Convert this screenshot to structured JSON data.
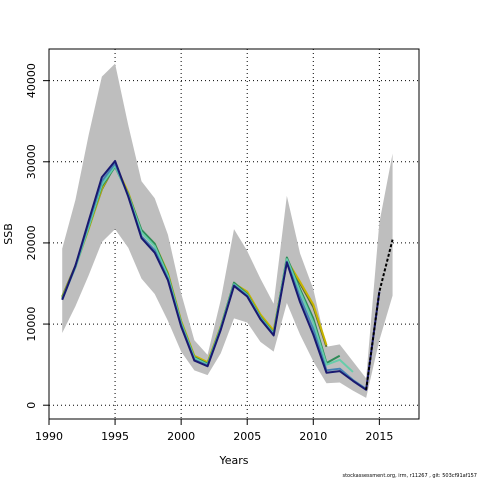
{
  "chart_data": {
    "type": "line",
    "xlabel": "Years",
    "ylabel": "SSB",
    "xlim": [
      1990,
      2018
    ],
    "ylim": [
      -1700,
      43900
    ],
    "x_ticks": [
      1990,
      1995,
      2000,
      2005,
      2010,
      2015
    ],
    "y_ticks": [
      0,
      10000,
      20000,
      30000,
      40000
    ],
    "grid": true,
    "confidence_band": {
      "color": "#bebebe",
      "x": [
        1991,
        1992,
        1993,
        1994,
        1995,
        1996,
        1997,
        1998,
        1999,
        2000,
        2001,
        2002,
        2003,
        2004,
        2005,
        2006,
        2007,
        2008,
        2009,
        2010,
        2011,
        2012,
        2013,
        2014,
        2015,
        2016
      ],
      "upper": [
        19300,
        25300,
        33300,
        40500,
        42100,
        34500,
        27600,
        25500,
        21000,
        13800,
        8000,
        6200,
        13000,
        21700,
        19000,
        15600,
        12500,
        25800,
        18700,
        14300,
        7200,
        7500,
        5400,
        3300,
        22500,
        31000
      ],
      "lower": [
        8900,
        12200,
        16000,
        20100,
        21700,
        19400,
        15600,
        13700,
        10400,
        6600,
        4300,
        3700,
        6400,
        10700,
        10200,
        7800,
        6600,
        12600,
        8700,
        5400,
        2700,
        2800,
        1800,
        900,
        8000,
        13500
      ]
    },
    "series": [
      {
        "color": "#556b2f",
        "x": [
          1991,
          1992,
          1993,
          1994,
          1995,
          1996,
          1997,
          1998,
          1999,
          2000,
          2001,
          2002,
          2003,
          2004,
          2005,
          2006,
          2007,
          2008,
          2009,
          2010,
          2011
        ],
        "values": [
          13400,
          17200,
          21800,
          26600,
          29600,
          26100,
          21400,
          19800,
          16200,
          10300,
          6000,
          5200,
          9600,
          14900,
          13900,
          11100,
          9100,
          17800,
          15000,
          12100,
          7200
        ]
      },
      {
        "color": "#c8b400",
        "x": [
          1991,
          1992,
          1993,
          1994,
          1995,
          1996,
          1997,
          1998,
          1999,
          2000,
          2001,
          2002,
          2003,
          2004,
          2005,
          2006,
          2007,
          2008,
          2009,
          2010,
          2011
        ],
        "values": [
          13300,
          17100,
          21700,
          26700,
          29700,
          26200,
          21500,
          19900,
          16300,
          10400,
          6100,
          5300,
          9700,
          15000,
          14000,
          11200,
          9200,
          17900,
          15200,
          12400,
          7400
        ]
      },
      {
        "color": "#2e8b57",
        "x": [
          1991,
          1992,
          1993,
          1994,
          1995,
          1996,
          1997,
          1998,
          1999,
          2000,
          2001,
          2002,
          2003,
          2004,
          2005,
          2006,
          2007,
          2008,
          2009,
          2010,
          2011,
          2012
        ],
        "values": [
          13200,
          17000,
          21900,
          27000,
          29400,
          26000,
          21600,
          19900,
          16100,
          10200,
          5900,
          5100,
          9600,
          15100,
          13700,
          10900,
          8900,
          18200,
          14300,
          10700,
          5200,
          6100
        ]
      },
      {
        "color": "#66cdaa",
        "x": [
          1991,
          1992,
          1993,
          1994,
          1995,
          1996,
          1997,
          1998,
          1999,
          2000,
          2001,
          2002,
          2003,
          2004,
          2005,
          2006,
          2007,
          2008,
          2009,
          2010,
          2011,
          2012,
          2013
        ],
        "values": [
          13100,
          17000,
          22000,
          27200,
          29500,
          25900,
          21300,
          19600,
          15900,
          10100,
          5800,
          5000,
          9500,
          14900,
          13600,
          10800,
          8800,
          18000,
          14000,
          10200,
          5000,
          5600,
          4100
        ]
      },
      {
        "color": "#4682b4",
        "x": [
          1991,
          1992,
          1993,
          1994,
          1995,
          1996,
          1997,
          1998,
          1999,
          2000,
          2001,
          2002,
          2003,
          2004,
          2005,
          2006,
          2007,
          2008,
          2009,
          2010,
          2011,
          2012,
          2013,
          2014
        ],
        "values": [
          13000,
          17100,
          22400,
          27600,
          29800,
          25800,
          20800,
          19100,
          15600,
          9900,
          5600,
          4900,
          9400,
          14800,
          13500,
          10700,
          8700,
          17700,
          13300,
          9400,
          4300,
          4500,
          3100,
          2000
        ]
      },
      {
        "color": "#191970",
        "x": [
          1991,
          1992,
          1993,
          1994,
          1995,
          1996,
          1997,
          1998,
          1999,
          2000,
          2001,
          2002,
          2003,
          2004,
          2005,
          2006,
          2007,
          2008,
          2009,
          2010,
          2011,
          2012,
          2013,
          2014,
          2015
        ],
        "values": [
          13000,
          17200,
          22700,
          28100,
          30100,
          25700,
          20600,
          18800,
          15400,
          9700,
          5500,
          4800,
          9300,
          14700,
          13400,
          10600,
          8600,
          17600,
          12700,
          8700,
          4000,
          4200,
          3000,
          1900,
          14000
        ]
      },
      {
        "color": "#000000",
        "dashed": true,
        "x": [
          2014,
          2015,
          2016
        ],
        "values": [
          1900,
          14000,
          20400
        ]
      }
    ]
  },
  "footer": "stockassessment.org, irm, r11267 , git: 503cf91af157"
}
